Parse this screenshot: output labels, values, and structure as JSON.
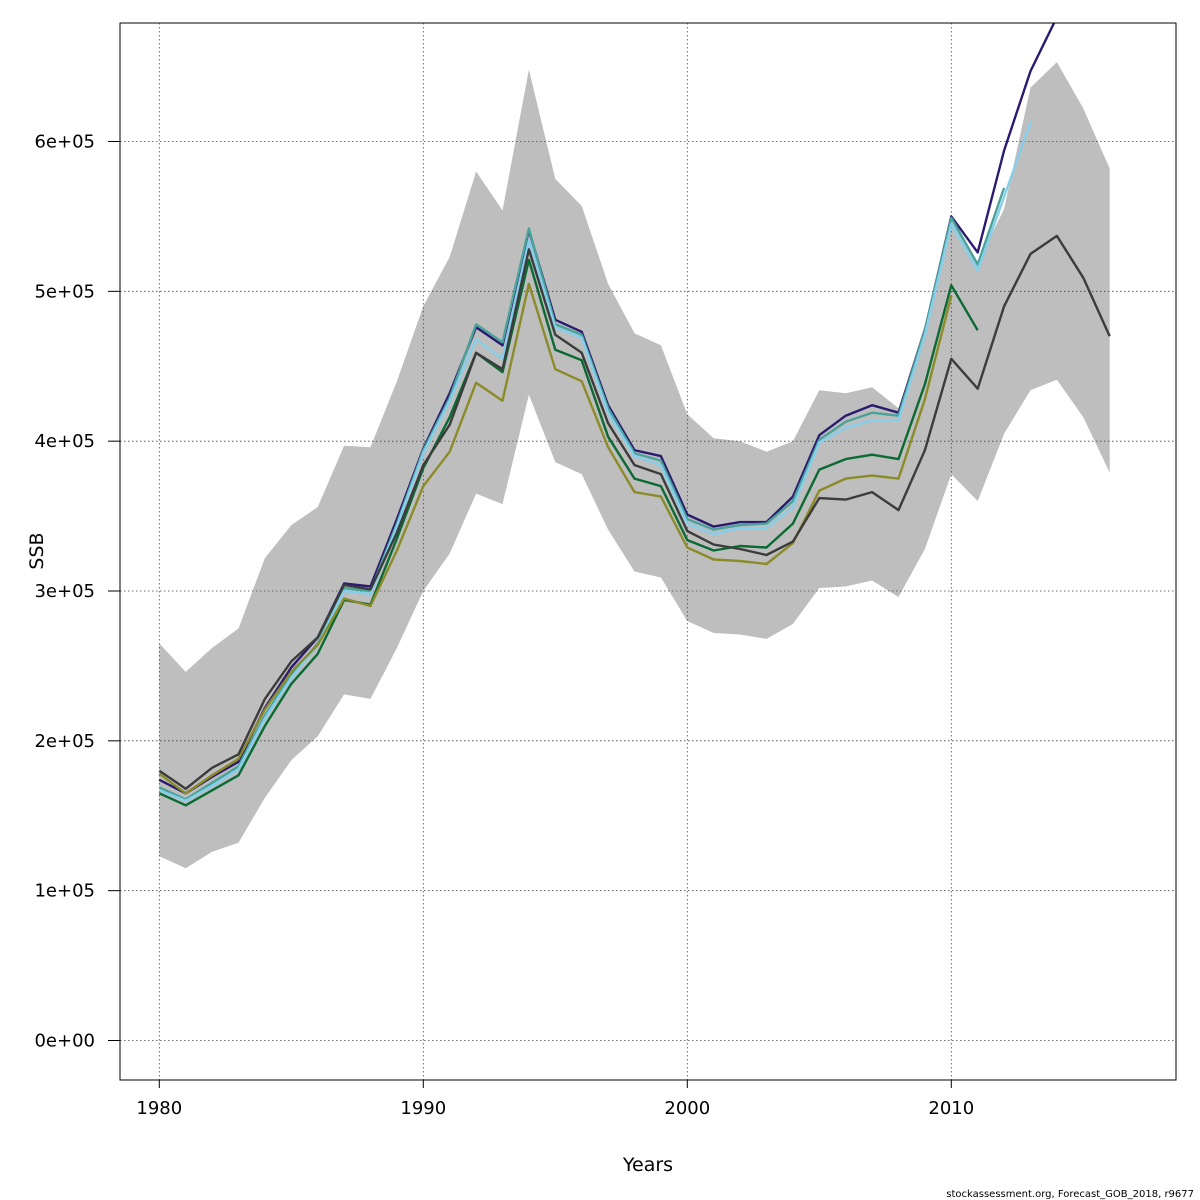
{
  "chart_data": {
    "type": "line",
    "xlabel": "Years",
    "ylabel": "SSB",
    "xlim": [
      1978.5,
      2018.5
    ],
    "ylim": [
      -25000,
      680000
    ],
    "x_ticks": [
      1980,
      1990,
      2000,
      2010
    ],
    "x_tick_labels": [
      "1980",
      "1990",
      "2000",
      "2010"
    ],
    "y_ticks": [
      0,
      100000,
      200000,
      300000,
      400000,
      500000,
      600000
    ],
    "y_tick_labels": [
      "0e+00",
      "1e+05",
      "2e+05",
      "3e+05",
      "4e+05",
      "5e+05",
      "6e+05"
    ],
    "grid": true,
    "credit": "stockassessment.org, Forecast_GOB_2018, r9677",
    "confidence_band": {
      "color": "#bebebe",
      "x": [
        1980,
        1981,
        1982,
        1983,
        1984,
        1985,
        1986,
        1987,
        1988,
        1989,
        1990,
        1991,
        1992,
        1993,
        1994,
        1995,
        1996,
        1997,
        1998,
        1999,
        2000,
        2001,
        2002,
        2003,
        2004,
        2005,
        2006,
        2007,
        2008,
        2009,
        2010,
        2011,
        2012,
        2013,
        2014,
        2015,
        2016
      ],
      "upper": [
        265000,
        246000,
        262000,
        275000,
        322000,
        344000,
        356000,
        397000,
        396000,
        440000,
        490000,
        523000,
        580000,
        554000,
        648000,
        575000,
        557000,
        505000,
        472000,
        464000,
        418000,
        402000,
        400000,
        393000,
        400000,
        434000,
        432000,
        436000,
        422000,
        478000,
        547000,
        519000,
        555000,
        636000,
        653000,
        622000,
        582000
      ],
      "lower": [
        123000,
        115000,
        126000,
        132000,
        162000,
        187000,
        203000,
        231000,
        228000,
        262000,
        300000,
        325000,
        365000,
        358000,
        431000,
        386000,
        378000,
        341000,
        313000,
        309000,
        280000,
        272000,
        271000,
        268000,
        278000,
        302000,
        303000,
        307000,
        296000,
        328000,
        378000,
        360000,
        405000,
        434000,
        441000,
        416000,
        379000
      ]
    },
    "series": [
      {
        "color": "#2b1a6f",
        "x": [
          1980,
          1981,
          1982,
          1983,
          1984,
          1985,
          1986,
          1987,
          1988,
          1989,
          1990,
          1991,
          1992,
          1993,
          1994,
          1995,
          1996,
          1997,
          1998,
          1999,
          2000,
          2001,
          2002,
          2003,
          2004,
          2005,
          2006,
          2007,
          2008,
          2009,
          2010,
          2011,
          2012,
          2013,
          2014,
          2015
        ],
        "values": [
          174000,
          165000,
          176000,
          186000,
          222000,
          249000,
          269000,
          305000,
          303000,
          348000,
          395000,
          432000,
          476000,
          464000,
          541000,
          481000,
          473000,
          424000,
          394000,
          390000,
          351000,
          343000,
          346000,
          346000,
          363000,
          404000,
          417000,
          424000,
          419000,
          474000,
          550000,
          526000,
          594000,
          647000,
          683000,
          720000
        ]
      },
      {
        "color": "#4aa39a",
        "x": [
          1980,
          1981,
          1982,
          1983,
          1984,
          1985,
          1986,
          1987,
          1988,
          1989,
          1990,
          1991,
          1992,
          1993,
          1994,
          1995,
          1996,
          1997,
          1998,
          1999,
          2000,
          2001,
          2002,
          2003,
          2004,
          2005,
          2006,
          2007,
          2008,
          2009,
          2010,
          2011,
          2012
        ],
        "values": [
          169000,
          161000,
          172000,
          183000,
          217000,
          244000,
          265000,
          302000,
          300000,
          345000,
          394000,
          429000,
          478000,
          466000,
          542000,
          478000,
          471000,
          422000,
          392000,
          387000,
          348000,
          341000,
          344000,
          345000,
          360000,
          401000,
          413000,
          419000,
          417000,
          474000,
          549000,
          518000,
          569000
        ]
      },
      {
        "color": "#87ceeb",
        "x": [
          1980,
          1981,
          1982,
          1983,
          1984,
          1985,
          1986,
          1987,
          1988,
          1989,
          1990,
          1991,
          1992,
          1993,
          1994,
          1995,
          1996,
          1997,
          1998,
          1999,
          2000,
          2001,
          2002,
          2003,
          2004,
          2005,
          2006,
          2007,
          2008,
          2009,
          2010,
          2011,
          2012,
          2013
        ],
        "values": [
          167000,
          160000,
          170000,
          181000,
          215000,
          242000,
          264000,
          300000,
          298000,
          343000,
          392000,
          427000,
          468000,
          455000,
          534000,
          476000,
          469000,
          419000,
          390000,
          384000,
          345000,
          338000,
          342000,
          342000,
          356000,
          399000,
          409000,
          414000,
          414000,
          471000,
          545000,
          514000,
          563000,
          613000
        ]
      },
      {
        "color": "#0b6a33",
        "x": [
          1980,
          1981,
          1982,
          1983,
          1984,
          1985,
          1986,
          1987,
          1988,
          1989,
          1990,
          1991,
          1992,
          1993,
          1994,
          1995,
          1996,
          1997,
          1998,
          1999,
          2000,
          2001,
          2002,
          2003,
          2004,
          2005,
          2006,
          2007,
          2008,
          2009,
          2010,
          2011
        ],
        "values": [
          165000,
          157000,
          167000,
          177000,
          210000,
          238000,
          258000,
          294000,
          291000,
          335000,
          382000,
          416000,
          459000,
          446000,
          521000,
          461000,
          454000,
          403000,
          375000,
          370000,
          334000,
          327000,
          330000,
          329000,
          345000,
          381000,
          388000,
          391000,
          388000,
          438000,
          504000,
          474000
        ]
      },
      {
        "color": "#8b8b2a",
        "x": [
          1980,
          1981,
          1982,
          1983,
          1984,
          1985,
          1986,
          1987,
          1988,
          1989,
          1990,
          1991,
          1992,
          1993,
          1994,
          1995,
          1996,
          1997,
          1998,
          1999,
          2000,
          2001,
          2002,
          2003,
          2004,
          2005,
          2006,
          2007,
          2008,
          2009,
          2010
        ],
        "values": [
          178000,
          165000,
          177000,
          188000,
          221000,
          246000,
          264000,
          295000,
          290000,
          327000,
          370000,
          393000,
          439000,
          427000,
          505000,
          448000,
          440000,
          396000,
          366000,
          363000,
          329000,
          321000,
          320000,
          318000,
          332000,
          367000,
          375000,
          377000,
          375000,
          428000,
          497000
        ]
      },
      {
        "color": "#3c3c3c",
        "x": [
          1980,
          1981,
          1982,
          1983,
          1984,
          1985,
          1986,
          1987,
          1988,
          1989,
          1990,
          1991,
          1992,
          1993,
          1994,
          1995,
          1996,
          1997,
          1998,
          1999,
          2000,
          2001,
          2002,
          2003,
          2004,
          2005,
          2006,
          2007,
          2008,
          2009,
          2010,
          2011,
          2012,
          2013,
          2014,
          2015,
          2016
        ],
        "values": [
          180000,
          168000,
          182000,
          191000,
          228000,
          253000,
          269000,
          304000,
          301000,
          339000,
          384000,
          411000,
          459000,
          448000,
          528000,
          471000,
          459000,
          412000,
          384000,
          378000,
          340000,
          331000,
          328000,
          324000,
          333000,
          362000,
          361000,
          366000,
          354000,
          394000,
          455000,
          435000,
          490000,
          525000,
          537000,
          509000,
          470000
        ]
      }
    ]
  }
}
